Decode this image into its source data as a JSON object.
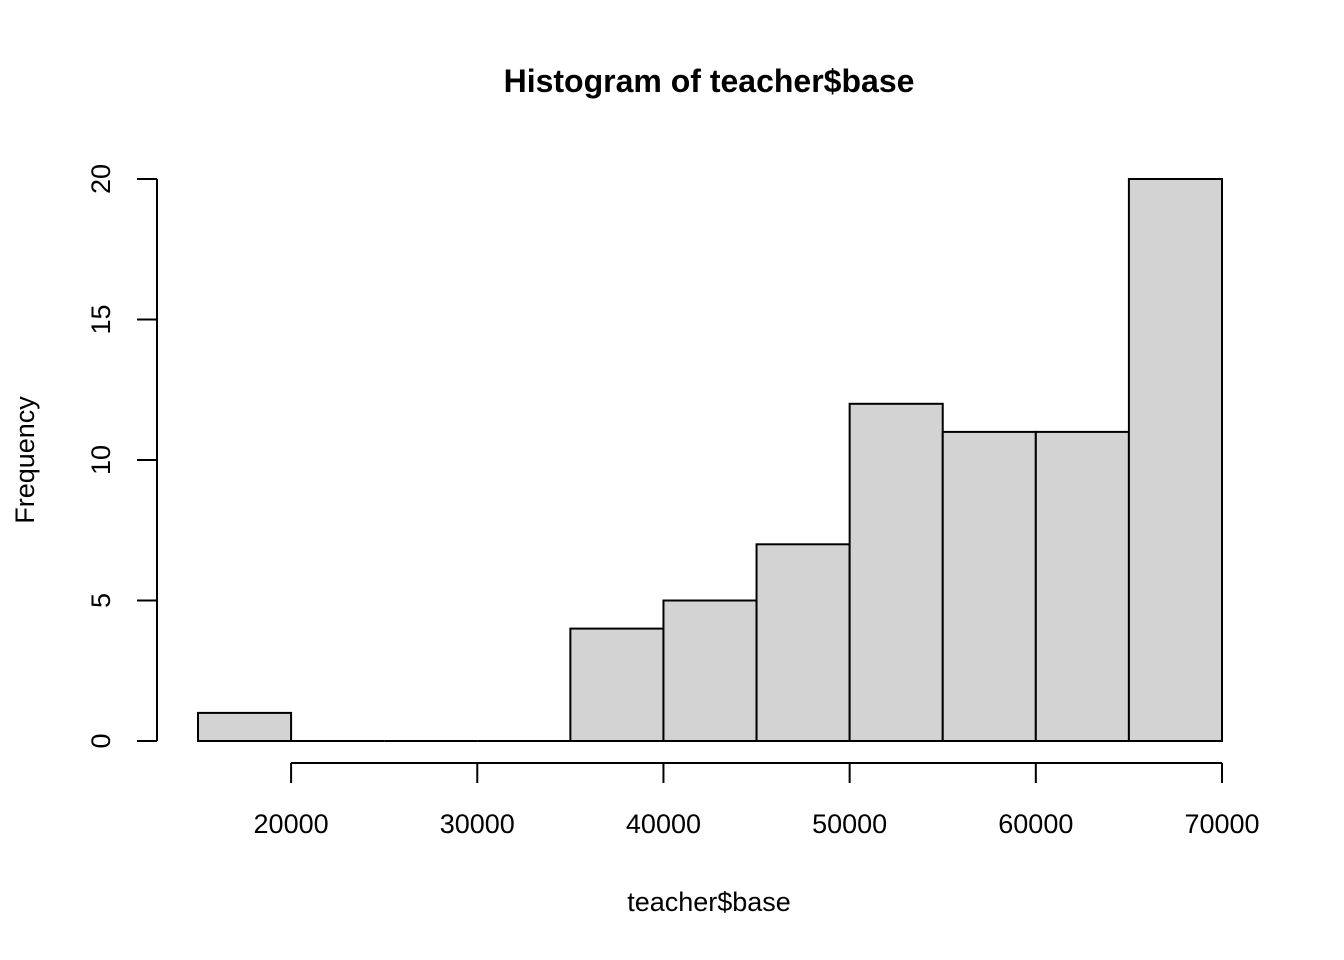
{
  "chart_data": {
    "type": "bar",
    "subtype": "histogram",
    "title": "Histogram of teacher$base",
    "xlabel": "teacher$base",
    "ylabel": "Frequency",
    "bins": [
      {
        "start": 15000,
        "end": 20000,
        "count": 1
      },
      {
        "start": 20000,
        "end": 25000,
        "count": 0
      },
      {
        "start": 25000,
        "end": 30000,
        "count": 0
      },
      {
        "start": 30000,
        "end": 35000,
        "count": 0
      },
      {
        "start": 35000,
        "end": 40000,
        "count": 4
      },
      {
        "start": 40000,
        "end": 45000,
        "count": 5
      },
      {
        "start": 45000,
        "end": 50000,
        "count": 7
      },
      {
        "start": 50000,
        "end": 55000,
        "count": 12
      },
      {
        "start": 55000,
        "end": 60000,
        "count": 11
      },
      {
        "start": 60000,
        "end": 65000,
        "count": 11
      },
      {
        "start": 65000,
        "end": 70000,
        "count": 20
      }
    ],
    "x_ticks": [
      20000,
      30000,
      40000,
      50000,
      60000,
      70000
    ],
    "x_tick_labels": [
      "20000",
      "30000",
      "40000",
      "50000",
      "60000",
      "70000"
    ],
    "y_ticks": [
      0,
      5,
      10,
      15,
      20
    ],
    "y_tick_labels": [
      "0",
      "5",
      "10",
      "15",
      "20"
    ],
    "xlim": [
      15000,
      70000
    ],
    "ylim": [
      0,
      20
    ],
    "grid": false,
    "legend": "none",
    "colors": {
      "bar_fill": "#d3d3d3",
      "bar_stroke": "#000000",
      "background": "#ffffff"
    }
  }
}
